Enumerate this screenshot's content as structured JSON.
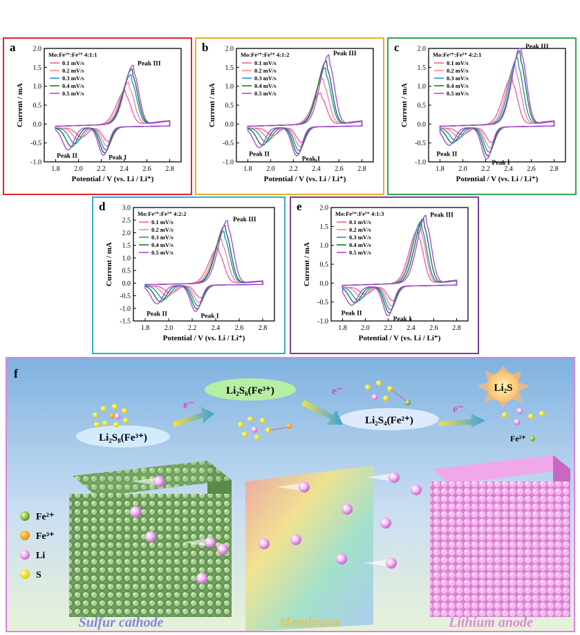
{
  "chart_data": [
    {
      "id": "a",
      "type": "line",
      "label": "a",
      "title": "Mo:Fe²⁺:Fe³⁺ 4:1:1",
      "border": "#e02424",
      "xlabel": "Potential / V (vs. Li / Li⁺)",
      "ylabel": "Current / mA",
      "xlim": [
        1.7,
        2.9
      ],
      "ylim": [
        -1.0,
        2.0
      ],
      "xticks": [
        "1.8",
        "2.0",
        "2.2",
        "2.4",
        "2.6",
        "2.8"
      ],
      "yticks": [
        "-1.0",
        "-0.5",
        "0.0",
        "0.5",
        "1.0",
        "1.5",
        "2.0"
      ],
      "peaks": [
        {
          "name": "Peak III",
          "x": 2.47,
          "y": 1.55
        },
        {
          "name": "Peak I",
          "x": 2.24,
          "y": -0.72
        },
        {
          "name": "Peak II",
          "x": 1.9,
          "y": -0.6
        }
      ],
      "series": [
        {
          "name": "0.1 mV/s",
          "color": "#ee5fa8",
          "peak3": [
            2.41,
            0.88
          ],
          "peak1": [
            2.26,
            -0.38
          ],
          "peak2": [
            2.03,
            -0.25
          ]
        },
        {
          "name": "0.2 mV/s",
          "color": "#f28a8a",
          "peak3": [
            2.44,
            1.1
          ],
          "peak1": [
            2.25,
            -0.5
          ],
          "peak2": [
            2.0,
            -0.32
          ]
        },
        {
          "name": "0.3 mV/s",
          "color": "#1f90d0",
          "peak3": [
            2.46,
            1.3
          ],
          "peak1": [
            2.24,
            -0.6
          ],
          "peak2": [
            1.97,
            -0.42
          ]
        },
        {
          "name": "0.4 mV/s",
          "color": "#1a7a2a",
          "peak3": [
            2.47,
            1.45
          ],
          "peak1": [
            2.23,
            -0.68
          ],
          "peak2": [
            1.94,
            -0.5
          ]
        },
        {
          "name": "0.5 mV/s",
          "color": "#b246e0",
          "peak3": [
            2.48,
            1.55
          ],
          "peak1": [
            2.22,
            -0.74
          ],
          "peak2": [
            1.91,
            -0.58
          ]
        }
      ]
    },
    {
      "id": "b",
      "type": "line",
      "label": "b",
      "title": "Mo:Fe²⁺:Fe³⁺ 4:1:2",
      "border": "#e8b020",
      "xlabel": "Potential / V (vs. Li / Li⁺)",
      "ylabel": "Current / mA",
      "xlim": [
        1.7,
        2.9
      ],
      "ylim": [
        -1.0,
        2.0
      ],
      "xticks": [
        "1.8",
        "2.0",
        "2.2",
        "2.4",
        "2.6",
        "2.8"
      ],
      "yticks": [
        "-1.0",
        "-0.5",
        "0.0",
        "0.5",
        "1.0",
        "1.5",
        "2.0"
      ],
      "peaks": [
        {
          "name": "Peak III",
          "x": 2.5,
          "y": 1.82
        },
        {
          "name": "Peak I",
          "x": 2.25,
          "y": -0.75
        },
        {
          "name": "Peak II",
          "x": 1.9,
          "y": -0.55
        }
      ],
      "series": [
        {
          "name": "0.1 mV/s",
          "color": "#ee5fa8",
          "peak3": [
            2.44,
            0.82
          ],
          "peak1": [
            2.27,
            -0.4
          ],
          "peak2": [
            2.02,
            -0.2
          ]
        },
        {
          "name": "0.2 mV/s",
          "color": "#f28a8a",
          "peak3": [
            2.46,
            1.2
          ],
          "peak1": [
            2.26,
            -0.52
          ],
          "peak2": [
            1.99,
            -0.3
          ]
        },
        {
          "name": "0.3 mV/s",
          "color": "#1f90d0",
          "peak3": [
            2.48,
            1.48
          ],
          "peak1": [
            2.25,
            -0.62
          ],
          "peak2": [
            1.96,
            -0.38
          ]
        },
        {
          "name": "0.4 mV/s",
          "color": "#1a7a2a",
          "peak3": [
            2.49,
            1.66
          ],
          "peak1": [
            2.24,
            -0.7
          ],
          "peak2": [
            1.93,
            -0.46
          ]
        },
        {
          "name": "0.5 mV/s",
          "color": "#b246e0",
          "peak3": [
            2.51,
            1.82
          ],
          "peak1": [
            2.23,
            -0.76
          ],
          "peak2": [
            1.9,
            -0.52
          ]
        }
      ]
    },
    {
      "id": "c",
      "type": "line",
      "label": "c",
      "title": "Mo:Fe²⁺:Fe³⁺ 4:2:1",
      "border": "#2aa84a",
      "xlabel": "Potential / V (vs. Li / Li⁺)",
      "ylabel": "Current / mA",
      "xlim": [
        1.7,
        2.9
      ],
      "ylim": [
        -1.0,
        2.0
      ],
      "xticks": [
        "1.8",
        "2.0",
        "2.2",
        "2.4",
        "2.6",
        "2.8"
      ],
      "yticks": [
        "-1.0",
        "-0.5",
        "0.0",
        "0.5",
        "1.0",
        "1.5",
        "2.0"
      ],
      "peaks": [
        {
          "name": "Peak III",
          "x": 2.5,
          "y": 2.0
        },
        {
          "name": "Peak I",
          "x": 2.23,
          "y": -0.85
        },
        {
          "name": "Peak II",
          "x": 1.86,
          "y": -0.55
        }
      ],
      "series": [
        {
          "name": "0.1 mV/s",
          "color": "#ee5fa8",
          "peak3": [
            2.43,
            1.25
          ],
          "peak1": [
            2.25,
            -0.4
          ],
          "peak2": [
            2.0,
            -0.18
          ]
        },
        {
          "name": "0.2 mV/s",
          "color": "#f28a8a",
          "peak3": [
            2.46,
            1.55
          ],
          "peak1": [
            2.24,
            -0.55
          ],
          "peak2": [
            1.97,
            -0.26
          ]
        },
        {
          "name": "0.3 mV/s",
          "color": "#1f90d0",
          "peak3": [
            2.48,
            1.75
          ],
          "peak1": [
            2.23,
            -0.66
          ],
          "peak2": [
            1.94,
            -0.34
          ]
        },
        {
          "name": "0.4 mV/s",
          "color": "#1a7a2a",
          "peak3": [
            2.5,
            1.92
          ],
          "peak1": [
            2.22,
            -0.76
          ],
          "peak2": [
            1.91,
            -0.4
          ]
        },
        {
          "name": "0.5 mV/s",
          "color": "#b246e0",
          "peak3": [
            2.51,
            2.08
          ],
          "peak1": [
            2.21,
            -0.84
          ],
          "peak2": [
            1.88,
            -0.46
          ]
        }
      ]
    },
    {
      "id": "d",
      "type": "line",
      "label": "d",
      "title": "Mo:Fe²⁺:Fe³⁺ 4:2:2",
      "border": "#30a8e0",
      "xlabel": "Potential / V (vs. Li / Li⁺)",
      "ylabel": "Current / mA",
      "xlim": [
        1.7,
        2.9
      ],
      "ylim": [
        -1.5,
        3.0
      ],
      "xticks": [
        "1.8",
        "2.0",
        "2.2",
        "2.4",
        "2.6",
        "2.8"
      ],
      "yticks": [
        "-1.5",
        "-1.0",
        "-0.5",
        "0.0",
        "0.5",
        "1.0",
        "1.5",
        "2.0",
        "2.5",
        "3.0"
      ],
      "peaks": [
        {
          "name": "Peak III",
          "x": 2.5,
          "y": 2.45
        },
        {
          "name": "Peak I",
          "x": 2.25,
          "y": -1.05
        },
        {
          "name": "Peak II",
          "x": 1.9,
          "y": -0.85
        }
      ],
      "series": [
        {
          "name": "0.1 mV/s",
          "color": "#ee5fa8",
          "peak3": [
            2.42,
            1.4
          ],
          "peak1": [
            2.27,
            -0.5
          ],
          "peak2": [
            2.02,
            -0.3
          ]
        },
        {
          "name": "0.2 mV/s",
          "color": "#f28a8a",
          "peak3": [
            2.45,
            1.75
          ],
          "peak1": [
            2.26,
            -0.68
          ],
          "peak2": [
            1.99,
            -0.42
          ]
        },
        {
          "name": "0.3 mV/s",
          "color": "#1f90d0",
          "peak3": [
            2.47,
            2.05
          ],
          "peak1": [
            2.25,
            -0.82
          ],
          "peak2": [
            1.96,
            -0.54
          ]
        },
        {
          "name": "0.4 mV/s",
          "color": "#1a7a2a",
          "peak3": [
            2.48,
            2.28
          ],
          "peak1": [
            2.24,
            -0.94
          ],
          "peak2": [
            1.93,
            -0.64
          ]
        },
        {
          "name": "0.5 mV/s",
          "color": "#b246e0",
          "peak3": [
            2.5,
            2.48
          ],
          "peak1": [
            2.23,
            -1.04
          ],
          "peak2": [
            1.9,
            -0.72
          ]
        }
      ]
    },
    {
      "id": "e",
      "type": "line",
      "label": "e",
      "title": "Mo:Fe²⁺:Fe³⁺ 4:1:3",
      "border": "#7b3aa8",
      "xlabel": "Potential / V (vs. Li / Li⁺)",
      "ylabel": "Current / mA",
      "xlim": [
        1.7,
        2.9
      ],
      "ylim": [
        -1.0,
        2.0
      ],
      "xticks": [
        "1.8",
        "2.0",
        "2.2",
        "2.4",
        "2.6",
        "2.8"
      ],
      "yticks": [
        "-1.0",
        "-0.5",
        "0.0",
        "0.5",
        "1.0",
        "1.5",
        "2.0"
      ],
      "peaks": [
        {
          "name": "Peak III",
          "x": 2.52,
          "y": 1.75
        },
        {
          "name": "Peak I",
          "x": 2.22,
          "y": -0.78
        },
        {
          "name": "Peak II",
          "x": 1.88,
          "y": -0.55
        }
      ],
      "series": [
        {
          "name": "0.1 mV/s",
          "color": "#ee5fa8",
          "peak3": [
            2.46,
            1.4
          ],
          "peak1": [
            2.24,
            -0.38
          ],
          "peak2": [
            2.0,
            -0.2
          ]
        },
        {
          "name": "0.2 mV/s",
          "color": "#f28a8a",
          "peak3": [
            2.48,
            1.55
          ],
          "peak1": [
            2.23,
            -0.52
          ],
          "peak2": [
            1.97,
            -0.28
          ]
        },
        {
          "name": "0.3 mV/s",
          "color": "#1f90d0",
          "peak3": [
            2.49,
            1.62
          ],
          "peak1": [
            2.22,
            -0.62
          ],
          "peak2": [
            1.94,
            -0.36
          ]
        },
        {
          "name": "0.4 mV/s",
          "color": "#1a7a2a",
          "peak3": [
            2.51,
            1.7
          ],
          "peak1": [
            2.21,
            -0.7
          ],
          "peak2": [
            1.91,
            -0.42
          ]
        },
        {
          "name": "0.5 mV/s",
          "color": "#b246e0",
          "peak3": [
            2.53,
            1.78
          ],
          "peak1": [
            2.2,
            -0.78
          ],
          "peak2": [
            1.88,
            -0.48
          ]
        }
      ]
    }
  ],
  "schematic": {
    "label": "f",
    "species": [
      "Li₂S₈(Fe³⁺)",
      "Li₂S₆(Fe³⁺)",
      "Li₂S₄(Fe²⁺)",
      "Li₂S"
    ],
    "electron": "e⁻",
    "fe2_tag": "Fe²⁺",
    "li_ion": "Li⁺",
    "legend": [
      {
        "name": "Fe²⁺",
        "color": "#8fb84a"
      },
      {
        "name": "Fe³⁺",
        "color": "#f0a020"
      },
      {
        "name": "Li",
        "color": "#e89ae8"
      },
      {
        "name": "S",
        "color": "#e8e020"
      }
    ],
    "components": [
      "Sulfur cathode",
      "Membrane",
      "Lithium anode"
    ]
  }
}
